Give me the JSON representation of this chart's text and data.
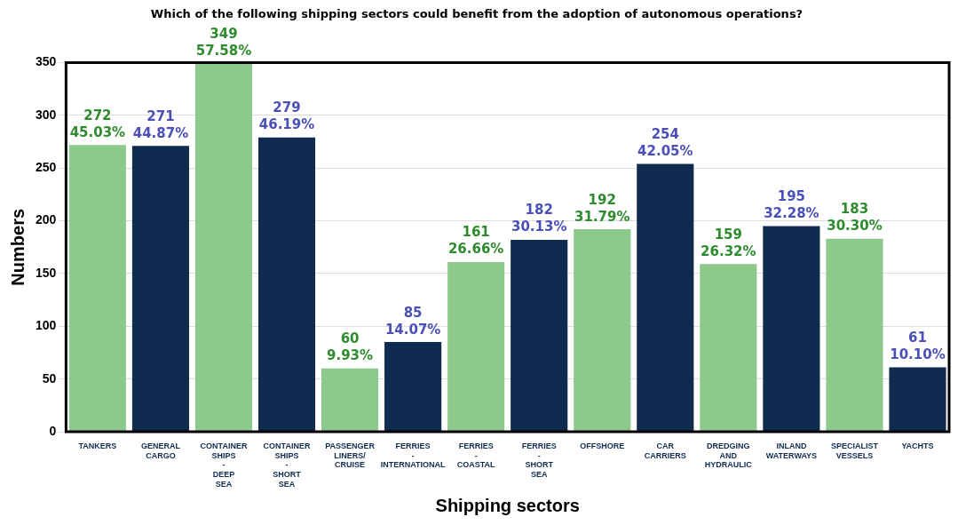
{
  "chart_data": {
    "type": "bar",
    "title": "Which of the following shipping sectors could benefit from the adoption of autonomous operations?",
    "xlabel": "Shipping sectors",
    "ylabel": "Numbers",
    "categories": [
      "TANKERS",
      "GENERAL CARGO",
      "CONTAINER SHIPS - DEEP SEA",
      "CONTAINER SHIPS - SHORT SEA",
      "PASSENGER LINERS/ CRUISE",
      "FERRIES - INTERNATIONAL",
      "FERRIES - COASTAL",
      "FERRIES - SHORT SEA",
      "OFFSHORE",
      "CAR CARRIERS",
      "DREDGING AND HYDRAULIC",
      "INLAND WATERWAYS",
      "SPECIALIST VESSELS",
      "YACHTS"
    ],
    "values": [
      272,
      271,
      349,
      279,
      60,
      85,
      161,
      182,
      192,
      254,
      159,
      195,
      183,
      61
    ],
    "colors": [
      "#8dc98a",
      "#0f2b50",
      "#8dc98a",
      "#0f2b50",
      "#8dc98a",
      "#0f2b50",
      "#8dc98a",
      "#0f2b50",
      "#8dc98a",
      "#0f2b50",
      "#8dc98a",
      "#0f2b50",
      "#8dc98a",
      "#0f2b50"
    ],
    "value_labels": [
      "272\n45.03%",
      "271\n44.87%",
      "349\n57.58%",
      "279\n46.19%",
      "60\n9.93%",
      "85\n14.07%",
      "161\n26.66%",
      "182\n30.13%",
      "192\n31.79%",
      "254\n42.05%",
      "159\n26.32%",
      "195\n32.28%",
      "183\n30.30%",
      "61\n10.10%"
    ],
    "ylim": [
      0,
      350
    ],
    "yticks": [
      0,
      50,
      100,
      150,
      200,
      250,
      300,
      350
    ],
    "grid": "y",
    "legend": false
  }
}
